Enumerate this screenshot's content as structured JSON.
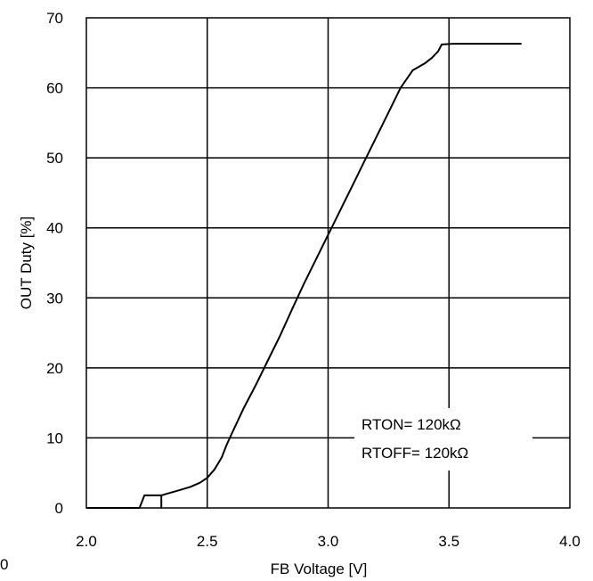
{
  "chart_data": {
    "type": "line",
    "xlabel": "FB Voltage  [V]",
    "ylabel": "OUT Duty  [%]",
    "xlim": [
      2.0,
      4.0
    ],
    "ylim": [
      0,
      70
    ],
    "x_ticks": [
      "2.0",
      "2.5",
      "3.0",
      "3.5",
      "4.0"
    ],
    "y_ticks": [
      "0",
      "10",
      "20",
      "30",
      "40",
      "50",
      "60",
      "70"
    ],
    "grid": true,
    "annotations": [
      "RTON= 120kΩ",
      "RTOFF= 120kΩ"
    ],
    "corner_label": "0",
    "series": [
      {
        "color": "#000000",
        "points": [
          [
            2.0,
            0
          ],
          [
            2.22,
            0
          ],
          [
            2.24,
            1.8
          ],
          [
            2.31,
            1.8
          ],
          [
            2.31,
            0
          ],
          [
            2.31,
            1.8
          ],
          [
            2.33,
            2.0
          ],
          [
            2.38,
            2.5
          ],
          [
            2.43,
            3.0
          ],
          [
            2.47,
            3.6
          ],
          [
            2.5,
            4.3
          ],
          [
            2.53,
            5.5
          ],
          [
            2.56,
            7.2
          ],
          [
            2.58,
            9.0
          ],
          [
            2.6,
            10.5
          ],
          [
            2.65,
            14.2
          ],
          [
            2.7,
            17.5
          ],
          [
            2.75,
            21.0
          ],
          [
            2.8,
            24.5
          ],
          [
            2.85,
            28.3
          ],
          [
            2.9,
            32.0
          ],
          [
            2.95,
            35.5
          ],
          [
            3.0,
            39.0
          ],
          [
            3.05,
            42.5
          ],
          [
            3.1,
            46.0
          ],
          [
            3.15,
            49.5
          ],
          [
            3.2,
            53.0
          ],
          [
            3.25,
            56.5
          ],
          [
            3.3,
            60.0
          ],
          [
            3.35,
            62.5
          ],
          [
            3.4,
            63.5
          ],
          [
            3.43,
            64.3
          ],
          [
            3.455,
            65.2
          ],
          [
            3.47,
            66.2
          ],
          [
            3.52,
            66.3
          ],
          [
            3.8,
            66.3
          ]
        ]
      }
    ]
  }
}
